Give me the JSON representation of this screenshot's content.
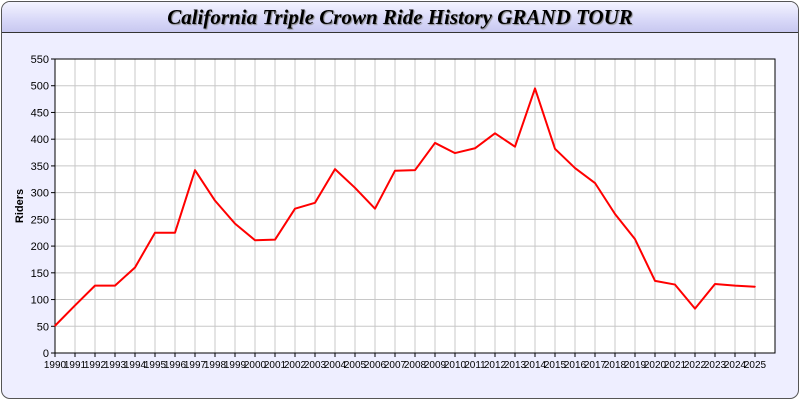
{
  "window": {
    "title": "California Triple Crown Ride History GRAND TOUR"
  },
  "chart_data": {
    "type": "line",
    "title": "California Triple Crown Ride History GRAND TOUR",
    "xlabel": "",
    "ylabel": "Riders",
    "xlim": [
      1990,
      2026
    ],
    "ylim": [
      0,
      550
    ],
    "yticks": [
      0,
      50,
      100,
      150,
      200,
      250,
      300,
      350,
      400,
      450,
      500,
      550
    ],
    "grid": true,
    "line_color": "#ff0000",
    "x": [
      1990,
      1991,
      1992,
      1993,
      1994,
      1995,
      1996,
      1997,
      1998,
      1999,
      2000,
      2001,
      2002,
      2003,
      2004,
      2005,
      2006,
      2007,
      2008,
      2009,
      2010,
      2011,
      2012,
      2013,
      2014,
      2015,
      2016,
      2017,
      2018,
      2019,
      2020,
      2021,
      2022,
      2023,
      2024,
      2025
    ],
    "y": [
      51,
      89,
      126,
      126,
      160,
      225,
      225,
      342,
      285,
      242,
      211,
      212,
      270,
      281,
      344,
      309,
      270,
      341,
      342,
      393,
      374,
      383,
      411,
      386,
      495,
      382,
      346,
      318,
      260,
      213,
      135,
      128,
      83,
      129,
      126,
      124
    ]
  }
}
